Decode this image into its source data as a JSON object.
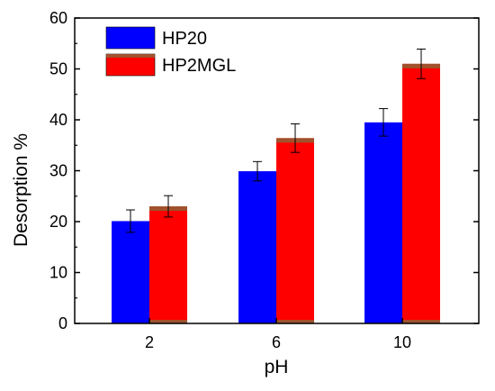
{
  "chart_data": {
    "type": "bar",
    "title": "",
    "xlabel": "pH",
    "ylabel": "Desorption %",
    "categories": [
      "2",
      "6",
      "10"
    ],
    "ylim": [
      0,
      60
    ],
    "yticks": [
      0,
      10,
      20,
      30,
      40,
      50,
      60
    ],
    "grid": false,
    "legend_position": "top-left",
    "series": [
      {
        "name": "HP20",
        "values": [
          20.1,
          29.9,
          39.5
        ],
        "errors": [
          2.2,
          1.9,
          2.7
        ],
        "color": "#0000ff"
      },
      {
        "name": "HP2MGL",
        "values": [
          23.0,
          36.4,
          51.0
        ],
        "errors": [
          2.1,
          2.8,
          2.9
        ],
        "color": "#ff0000",
        "cap_color": "#a0522d"
      }
    ]
  }
}
